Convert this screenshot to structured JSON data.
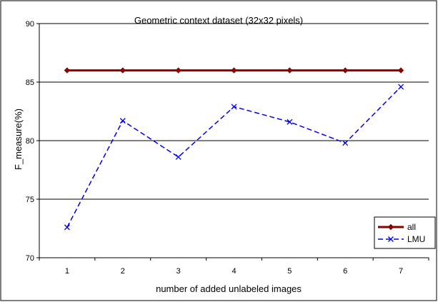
{
  "chart_data": {
    "type": "line",
    "title": "Geometric context dataset (32x32 pixels)",
    "xlabel": "number of added unlabeled images",
    "ylabel": "F_measure(%)",
    "categories": [
      "1",
      "2",
      "3",
      "4",
      "5",
      "6",
      "7"
    ],
    "ylim": [
      70,
      90
    ],
    "yticks": [
      70,
      75,
      80,
      85,
      90
    ],
    "grid": "horizontal major gridlines",
    "legend_position": "bottom-right",
    "series": [
      {
        "name": "all",
        "color": "#8b0000",
        "marker": "diamond",
        "line_style": "solid",
        "values": [
          86,
          86,
          86,
          86,
          86,
          86,
          86
        ]
      },
      {
        "name": "LMU",
        "color": "#0000ee",
        "marker": "x",
        "line_style": "dashed",
        "values": [
          72.6,
          81.7,
          78.6,
          82.9,
          81.6,
          79.8,
          84.6
        ]
      }
    ]
  }
}
